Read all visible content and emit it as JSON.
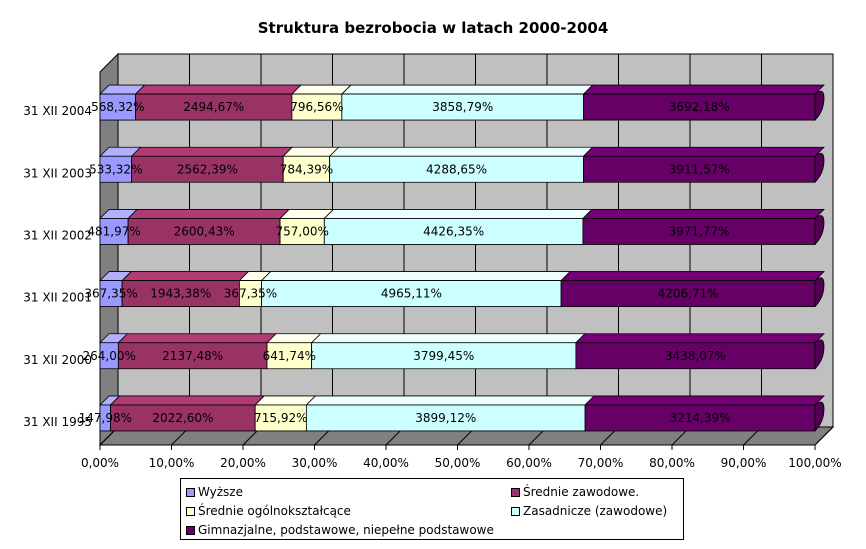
{
  "chart_data": {
    "type": "bar",
    "orientation": "horizontal",
    "stacked": "percent",
    "three_d": true,
    "title": "Struktura bezrobocia w latach 2000-2004",
    "categories": [
      "31 XII 2004",
      "31 XII 2003",
      "31 XII 2002",
      "31 XII 2001",
      "31 XII 2000",
      "31 XII 1995"
    ],
    "xlim": [
      0,
      100
    ],
    "x_ticks": [
      "0,00%",
      "10,00%",
      "20,00%",
      "30,00%",
      "40,00%",
      "50,00%",
      "60,00%",
      "70,00%",
      "80,00%",
      "90,00%",
      "100,00%"
    ],
    "grid": true,
    "legend_position": "bottom",
    "series": [
      {
        "name": "Wyższe",
        "color": "#9999ff",
        "values": [
          568.32,
          533.32,
          481.97,
          367.35,
          264.0,
          147.98
        ],
        "labels": [
          "568,32%",
          "533,32%",
          "481,97%",
          "367,35%",
          "264,00%",
          "147,98%"
        ]
      },
      {
        "name": "Średnie zawodowe.",
        "color": "#993366",
        "values": [
          2494.67,
          2562.39,
          2600.43,
          1943.38,
          2137.48,
          2022.6
        ],
        "labels": [
          "2494,67%",
          "2562,39%",
          "2600,43%",
          "1943,38%",
          "2137,48%",
          "2022,60%"
        ]
      },
      {
        "name": "Średnie ogólnokształcące",
        "color": "#ffffcc",
        "values": [
          796.56,
          784.39,
          757.0,
          367.35,
          641.74,
          715.92
        ],
        "labels": [
          "796,56%",
          "784,39%",
          "757,00%",
          "367,35%",
          "641,74%",
          "715,92%"
        ]
      },
      {
        "name": "Zasadnicze (zawodowe)",
        "color": "#ccffff",
        "values": [
          3858.79,
          4288.65,
          4426.35,
          4965.11,
          3799.45,
          3899.12
        ],
        "labels": [
          "3858,79%",
          "4288,65%",
          "4426,35%",
          "4965,11%",
          "3799,45%",
          "3899,12%"
        ]
      },
      {
        "name": "Gimnazjalne, podstawowe, niepełne podstawowe",
        "color": "#660066",
        "values": [
          3692.18,
          3911.57,
          3971.77,
          4206.71,
          3438.07,
          3214.39
        ],
        "labels": [
          "3692,18%",
          "3911,57%",
          "3971,77%",
          "4206,71%",
          "3438,07%",
          "3214,39%"
        ]
      }
    ]
  }
}
